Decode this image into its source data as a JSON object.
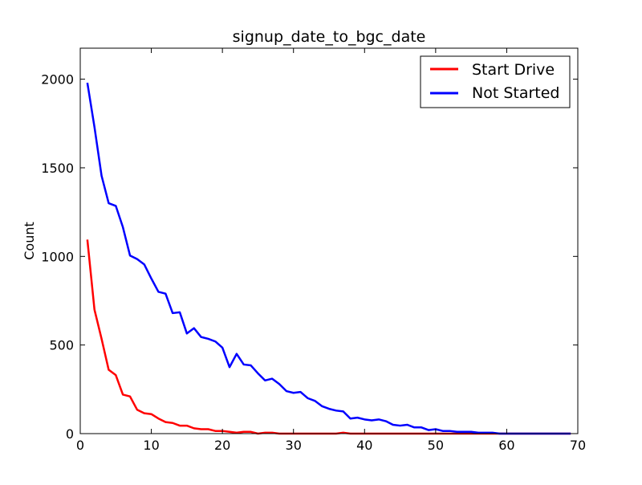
{
  "chart_data": {
    "type": "line",
    "title": "signup_date_to_bgc_date",
    "xlabel": "",
    "ylabel": "Count",
    "xlim": [
      0,
      70
    ],
    "ylim": [
      0,
      2175
    ],
    "xticks": [
      0,
      10,
      20,
      30,
      40,
      50,
      60,
      70
    ],
    "yticks": [
      0,
      500,
      1000,
      1500,
      2000
    ],
    "xtick_labels": [
      "0",
      "10",
      "20",
      "30",
      "40",
      "50",
      "60",
      "70"
    ],
    "ytick_labels": [
      "0",
      "500",
      "1000",
      "1500",
      "2000"
    ],
    "grid": false,
    "legend_position": "top-right",
    "x": [
      1,
      2,
      3,
      4,
      5,
      6,
      7,
      8,
      9,
      10,
      11,
      12,
      13,
      14,
      15,
      16,
      17,
      18,
      19,
      20,
      21,
      22,
      23,
      24,
      25,
      26,
      27,
      28,
      29,
      30,
      31,
      32,
      33,
      34,
      35,
      36,
      37,
      38,
      39,
      40,
      41,
      42,
      43,
      44,
      45,
      46,
      47,
      48,
      49,
      50,
      51,
      52,
      53,
      54,
      55,
      56,
      57,
      58,
      59,
      60,
      61,
      62,
      63,
      64,
      65,
      66,
      67,
      68,
      69
    ],
    "series": [
      {
        "name": "Start Drive",
        "color": "#ff0000",
        "values": [
          1095,
          700,
          535,
          360,
          330,
          220,
          210,
          135,
          115,
          110,
          85,
          65,
          60,
          45,
          45,
          30,
          25,
          25,
          15,
          15,
          10,
          5,
          10,
          10,
          0,
          5,
          5,
          0,
          0,
          0,
          0,
          0,
          0,
          0,
          0,
          0,
          5,
          0,
          0,
          0,
          0,
          0,
          0,
          0,
          0,
          0,
          0,
          0,
          0,
          0,
          0,
          0,
          0,
          0,
          0,
          0,
          0,
          0,
          0,
          0,
          0,
          0,
          0,
          0,
          0,
          0,
          0,
          0,
          0
        ]
      },
      {
        "name": "Not Started",
        "color": "#0000ff",
        "values": [
          1980,
          1730,
          1455,
          1300,
          1285,
          1165,
          1005,
          985,
          955,
          875,
          800,
          790,
          680,
          685,
          565,
          595,
          545,
          535,
          520,
          485,
          375,
          450,
          390,
          385,
          340,
          300,
          310,
          280,
          240,
          230,
          235,
          200,
          185,
          155,
          140,
          130,
          125,
          85,
          90,
          80,
          75,
          80,
          70,
          50,
          45,
          50,
          35,
          35,
          20,
          25,
          15,
          15,
          10,
          10,
          10,
          5,
          5,
          5,
          0,
          0,
          0,
          0,
          0,
          0,
          0,
          0,
          0,
          0,
          0
        ]
      }
    ]
  }
}
